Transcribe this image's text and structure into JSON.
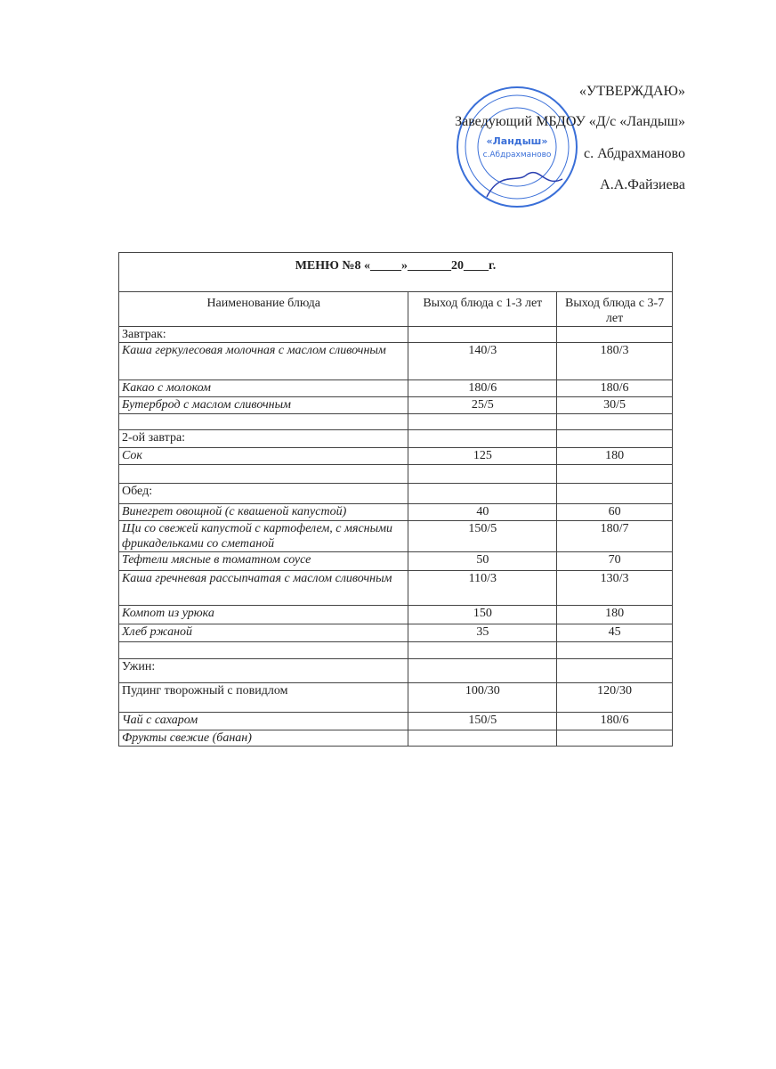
{
  "approval": {
    "title": "«УТВЕРЖДАЮ»",
    "line1": "Заведующий МБДОУ «Д/с «Ландыш»",
    "line2": "с. Абдрахманово",
    "line3": "А.А.Файзиева"
  },
  "stamp": {
    "center_text": "«Ландыш»",
    "place": "с.Абдрахманово",
    "color": "#3a6fd8"
  },
  "menu": {
    "title": "МЕНЮ  №8  «_____»_______20____г.",
    "headers": [
      "Наименование блюда",
      "Выход блюда с 1-3 лет",
      "Выход блюда с 3-7 лет"
    ],
    "rows": [
      {
        "name": "Завтрак:",
        "a": "",
        "b": "",
        "type": "section"
      },
      {
        "name": "Каша геркулесовая молочная с маслом сливочным",
        "a": "140/3",
        "b": "180/3",
        "type": "dish"
      },
      {
        "name": "Какао с молоком",
        "a": "180/6",
        "b": "180/6",
        "type": "dish"
      },
      {
        "name": "Бутерброд с маслом сливочным",
        "a": "25/5",
        "b": "30/5",
        "type": "dish"
      },
      {
        "name": "",
        "a": "",
        "b": "",
        "type": "empty"
      },
      {
        "name": "2-ой завтра:",
        "a": "",
        "b": "",
        "type": "section"
      },
      {
        "name": "Сок",
        "a": "125",
        "b": "180",
        "type": "dish"
      },
      {
        "name": "",
        "a": "",
        "b": "",
        "type": "empty"
      },
      {
        "name": "Обед:",
        "a": "",
        "b": "",
        "type": "section"
      },
      {
        "name": "Винегрет овощной (с квашеной капустой)",
        "a": "40",
        "b": "60",
        "type": "dish"
      },
      {
        "name": "Щи со свежей капустой с картофелем, с мясными фрикадельками со сметаной",
        "a": "150/5",
        "b": "180/7",
        "type": "dish"
      },
      {
        "name": "Тефтели мясные в томатном соусе",
        "a": "50",
        "b": "70",
        "type": "dish"
      },
      {
        "name": "Каша гречневая рассыпчатая с маслом сливочным",
        "a": "110/3",
        "b": "130/3",
        "type": "dish"
      },
      {
        "name": "Компот из урюка",
        "a": "150",
        "b": "180",
        "type": "dish"
      },
      {
        "name": "Хлеб ржаной",
        "a": "35",
        "b": "45",
        "type": "dish"
      },
      {
        "name": "",
        "a": "",
        "b": "",
        "type": "empty"
      },
      {
        "name": "Ужин:",
        "a": "",
        "b": "",
        "type": "section"
      },
      {
        "name": "Пудинг творожный с повидлом",
        "a": "100/30",
        "b": "120/30",
        "type": "section"
      },
      {
        "name": "Чай с сахаром",
        "a": "150/5",
        "b": "180/6",
        "type": "dish"
      },
      {
        "name": "Фрукты свежие (банан)",
        "a": "",
        "b": "",
        "type": "dish"
      }
    ]
  }
}
